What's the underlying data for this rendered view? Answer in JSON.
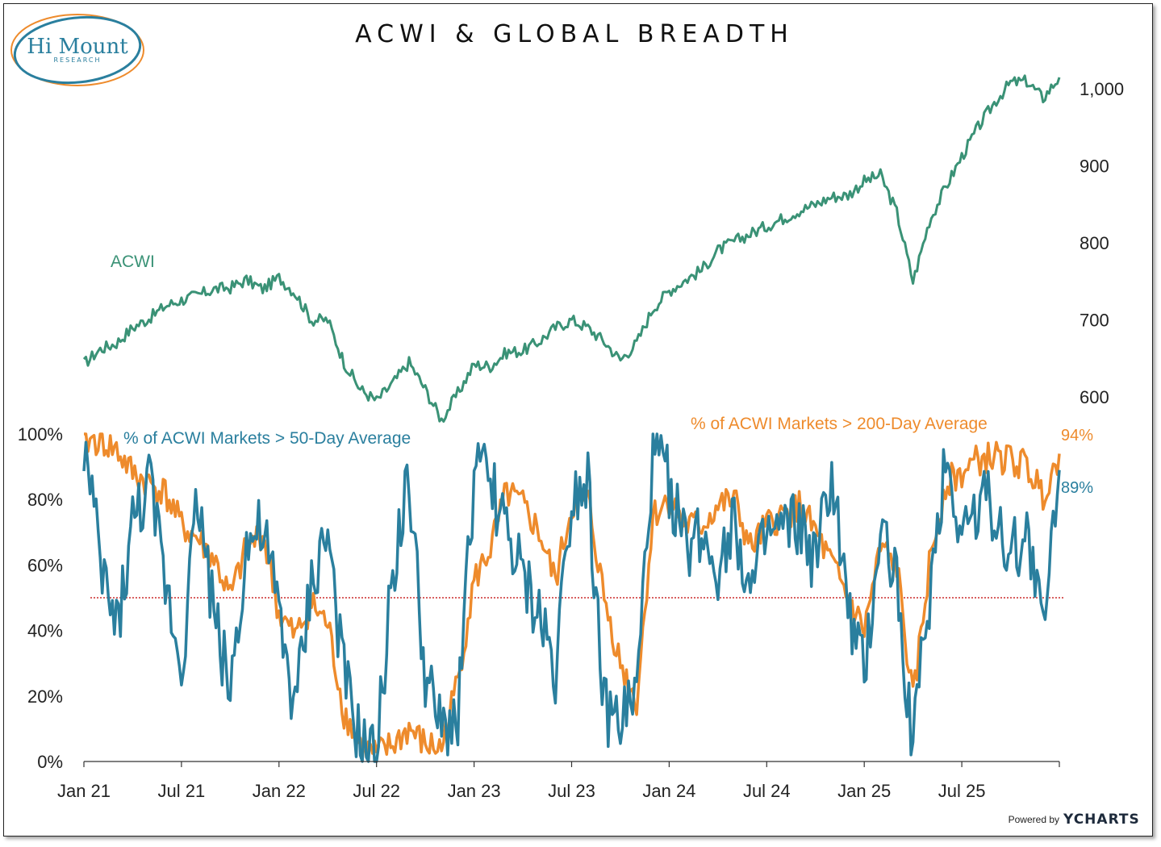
{
  "logo": {
    "name": "Hi Mount",
    "sub": "RESEARCH"
  },
  "footer": {
    "powered_by": "Powered by",
    "brand": "YCHARTS"
  },
  "colors": {
    "acwi": "#3a9276",
    "ma50": "#2a7f9e",
    "ma200": "#ee8b2c",
    "threshold": "#cc2b2b"
  },
  "chart_data": {
    "type": "line",
    "title": "ACWI & GLOBAL BREADTH",
    "x_ticks": [
      "Jan 21",
      "Jul 21",
      "Jan 22",
      "Jul 22",
      "Jan 23",
      "Jul 23",
      "Jan 24",
      "Jul 24",
      "Jan 25",
      "Jul 25"
    ],
    "x_tick_values": [
      0,
      6,
      12,
      18,
      24,
      30,
      36,
      42,
      48,
      54
    ],
    "x_range_months": [
      0,
      60
    ],
    "upper_panel": {
      "series_name": "ACWI",
      "y_ticks": [
        "1,000",
        "900",
        "800",
        "700",
        "600"
      ],
      "y_tick_values": [
        1000,
        900,
        800,
        700,
        600
      ],
      "ylim": [
        550,
        1040
      ],
      "months": [
        0,
        1,
        2,
        3,
        4,
        5,
        6,
        7,
        8,
        9,
        10,
        11,
        12,
        13,
        14,
        15,
        16,
        17,
        18,
        19,
        20,
        21,
        22,
        23,
        24,
        25,
        26,
        27,
        28,
        29,
        30,
        31,
        32,
        33,
        34,
        35,
        36,
        37,
        38,
        39,
        40,
        41,
        42,
        43,
        44,
        45,
        46,
        47,
        48,
        49,
        50,
        51,
        52,
        53,
        54,
        55,
        56,
        57,
        58,
        59,
        60
      ],
      "values": [
        643,
        662,
        670,
        690,
        702,
        718,
        726,
        732,
        740,
        742,
        752,
        740,
        755,
        735,
        700,
        700,
        645,
        610,
        595,
        618,
        645,
        610,
        570,
        605,
        642,
        640,
        658,
        660,
        672,
        690,
        700,
        690,
        672,
        648,
        670,
        715,
        738,
        752,
        765,
        790,
        802,
        812,
        822,
        832,
        842,
        850,
        860,
        862,
        880,
        888,
        840,
        750,
        828,
        872,
        912,
        950,
        982,
        1008,
        1010,
        988,
        1015
      ]
    },
    "lower_panel": {
      "y_ticks": [
        "100%",
        "80%",
        "60%",
        "40%",
        "20%",
        "0%"
      ],
      "y_tick_values": [
        100,
        80,
        60,
        40,
        20,
        0
      ],
      "ylim": [
        0,
        100
      ],
      "threshold": 50,
      "series": [
        {
          "name": "% of ACWI Markets > 50-Day Average",
          "last_value_label": "89%",
          "months": [
            0,
            1,
            2,
            3,
            4,
            5,
            6,
            7,
            8,
            9,
            10,
            11,
            12,
            13,
            14,
            15,
            16,
            17,
            18,
            19,
            20,
            21,
            22,
            23,
            24,
            25,
            26,
            27,
            28,
            29,
            30,
            31,
            32,
            33,
            34,
            35,
            36,
            37,
            38,
            39,
            40,
            41,
            42,
            43,
            44,
            45,
            46,
            47,
            48,
            49,
            50,
            51,
            52,
            53,
            54,
            55,
            56,
            57,
            58,
            59,
            60
          ],
          "values": [
            97,
            60,
            40,
            72,
            85,
            55,
            30,
            82,
            45,
            22,
            66,
            70,
            45,
            15,
            55,
            70,
            25,
            5,
            0,
            60,
            85,
            25,
            8,
            15,
            88,
            86,
            70,
            55,
            45,
            28,
            82,
            88,
            15,
            12,
            20,
            95,
            85,
            65,
            70,
            60,
            75,
            50,
            68,
            70,
            72,
            60,
            88,
            45,
            25,
            72,
            55,
            5,
            50,
            93,
            70,
            80,
            78,
            62,
            72,
            40,
            89
          ]
        },
        {
          "name": "% of ACWI Markets > 200-Day Average",
          "last_value_label": "94%",
          "months": [
            0,
            1,
            2,
            3,
            4,
            5,
            6,
            7,
            8,
            9,
            10,
            11,
            12,
            13,
            14,
            15,
            16,
            17,
            18,
            19,
            20,
            21,
            22,
            23,
            24,
            25,
            26,
            27,
            28,
            29,
            30,
            31,
            32,
            33,
            34,
            35,
            36,
            37,
            38,
            39,
            40,
            41,
            42,
            43,
            44,
            45,
            46,
            47,
            48,
            49,
            50,
            51,
            52,
            53,
            54,
            55,
            56,
            57,
            58,
            59,
            60
          ],
          "values": [
            98,
            98,
            95,
            88,
            85,
            82,
            72,
            68,
            62,
            50,
            65,
            70,
            45,
            38,
            48,
            42,
            15,
            5,
            2,
            5,
            10,
            5,
            4,
            25,
            55,
            65,
            82,
            78,
            70,
            55,
            78,
            80,
            50,
            30,
            18,
            75,
            80,
            72,
            72,
            78,
            80,
            65,
            72,
            75,
            78,
            70,
            60,
            50,
            40,
            65,
            60,
            18,
            60,
            85,
            88,
            92,
            93,
            92,
            90,
            82,
            94
          ]
        }
      ]
    }
  }
}
